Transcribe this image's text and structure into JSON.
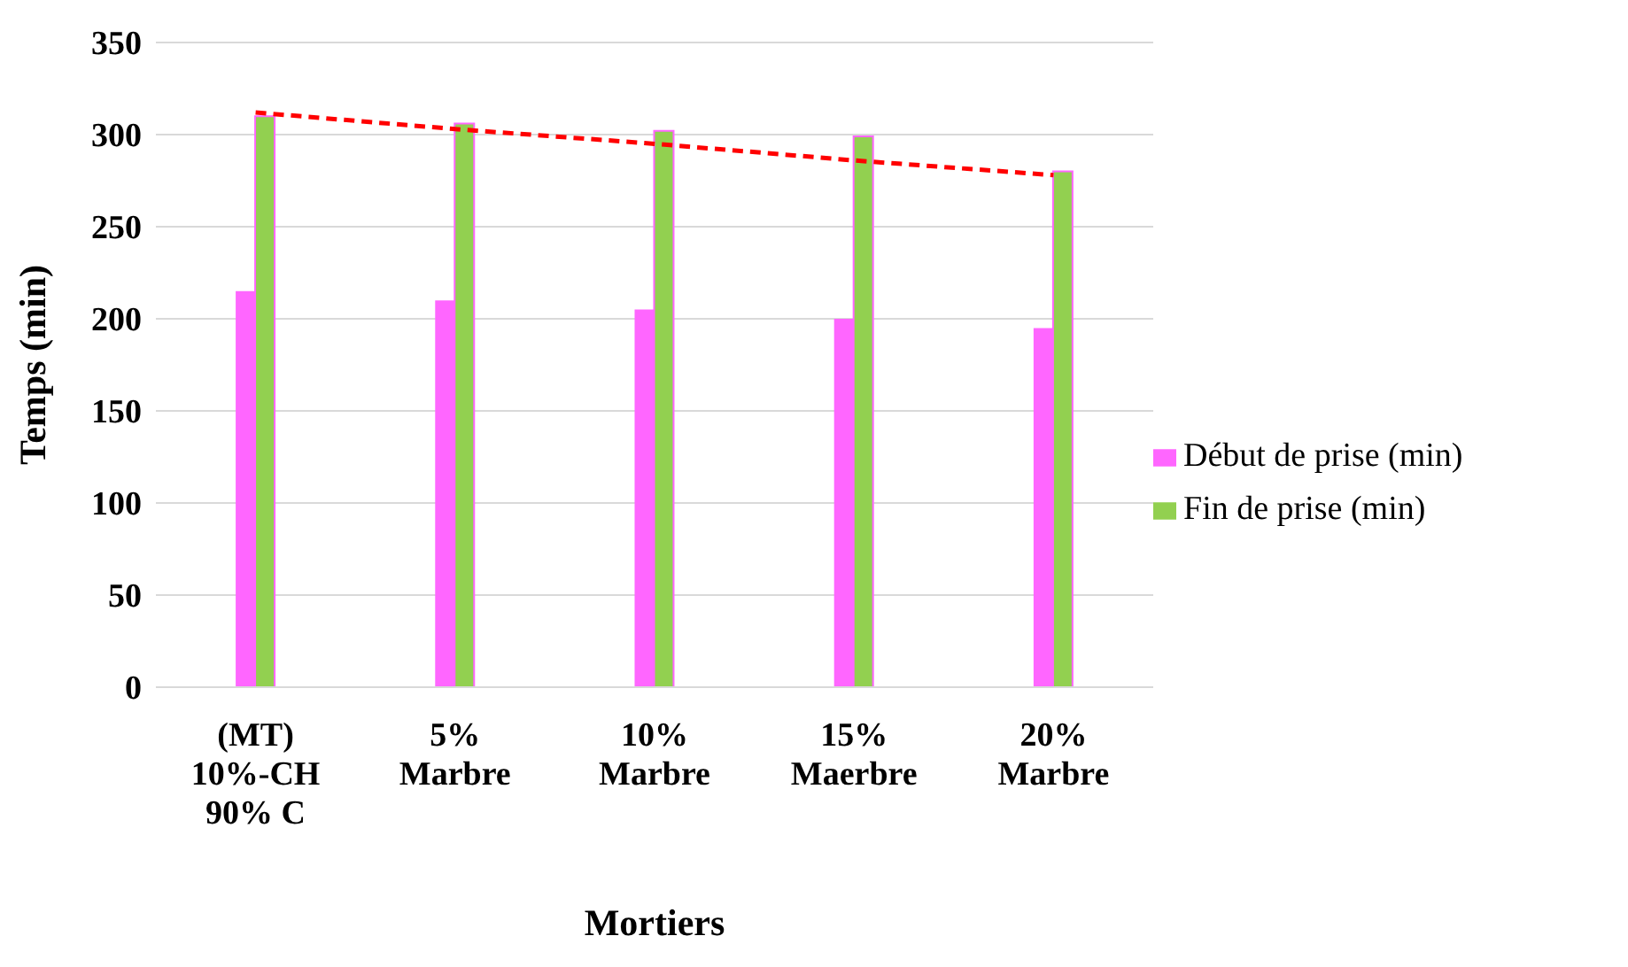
{
  "chart_data": {
    "type": "bar",
    "xlabel": "Mortiers",
    "ylabel": "Temps (min)",
    "categories": [
      "(MT)\n10%-CH\n90% C",
      "5%\nMarbre",
      "10%\nMarbre",
      "15%\nMaerbre",
      "20%\nMarbre"
    ],
    "series": [
      {
        "name": "Début de prise  (min)",
        "color": "#ff66ff",
        "values": [
          215,
          210,
          205,
          200,
          195
        ]
      },
      {
        "name": "Fin de prise  (min)",
        "color": "#92d050",
        "values": [
          310,
          306,
          302,
          299,
          280
        ]
      },
      {
        "type": "line",
        "color": "#ff0000",
        "line_style": "dashed",
        "marker": "none",
        "values": [
          312,
          303,
          295,
          286,
          278
        ]
      }
    ],
    "ylim": [
      0,
      350
    ],
    "yticks": [
      0,
      50,
      100,
      150,
      200,
      250,
      300,
      350
    ],
    "grid": "y",
    "legend": "right"
  }
}
